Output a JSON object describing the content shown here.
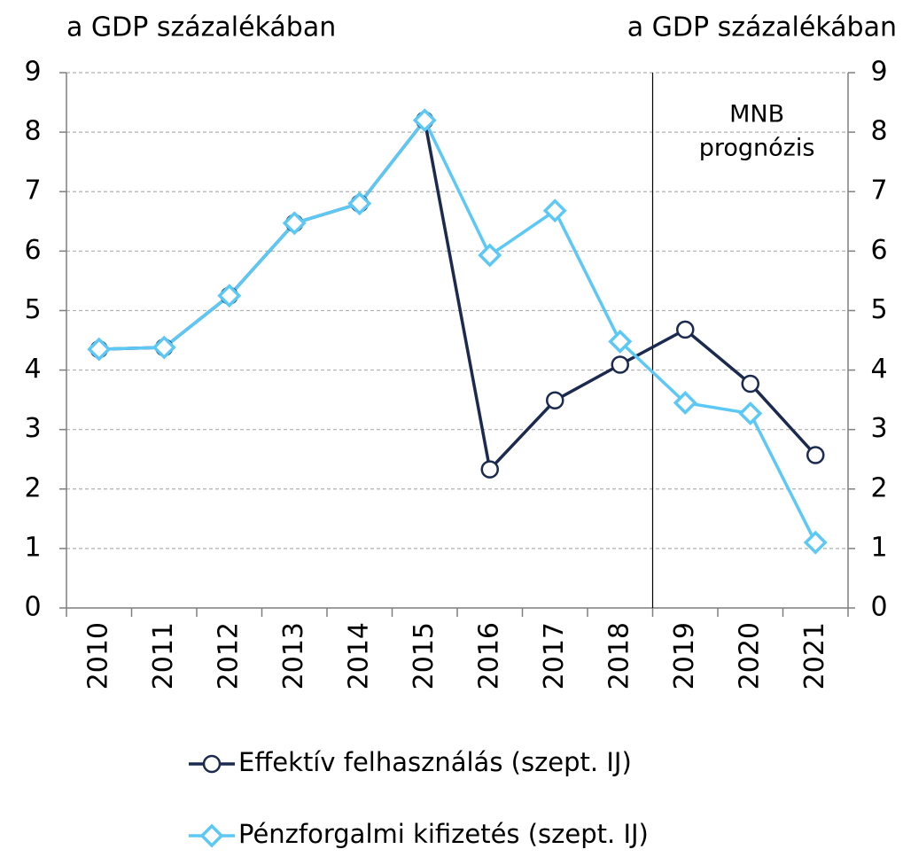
{
  "chart_data": {
    "type": "line",
    "y_label": "a GDP százalékában",
    "y2_label": "a GDP százalékában",
    "categories": [
      "2010",
      "2011",
      "2012",
      "2013",
      "2014",
      "2015",
      "2016",
      "2017",
      "2018",
      "2019",
      "2020",
      "2021"
    ],
    "series": [
      {
        "name": "Effektív felhasználás (szept. IJ)",
        "color": "#1b2a4e",
        "marker": "circle",
        "values": [
          4.35,
          4.38,
          5.25,
          6.47,
          6.8,
          8.2,
          2.33,
          3.49,
          4.09,
          4.68,
          3.77,
          2.57
        ]
      },
      {
        "name": "Pénzforgalmi kifizetés (szept. IJ)",
        "color": "#5bc8f5",
        "marker": "diamond",
        "values": [
          4.35,
          4.38,
          5.25,
          6.47,
          6.8,
          8.2,
          5.93,
          6.68,
          4.48,
          3.45,
          3.27,
          1.1
        ]
      }
    ],
    "ylim": [
      0,
      9
    ],
    "yticks": [
      0,
      1,
      2,
      3,
      4,
      5,
      6,
      7,
      8,
      9
    ],
    "y2lim": [
      0,
      9
    ],
    "y2ticks": [
      0,
      1,
      2,
      3,
      4,
      5,
      6,
      7,
      8,
      9
    ],
    "grid": true,
    "annotation": {
      "lines": [
        "MNB",
        "prognózis"
      ],
      "category": "2019"
    }
  }
}
